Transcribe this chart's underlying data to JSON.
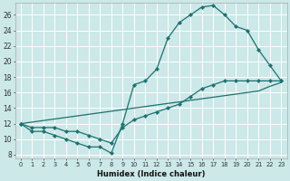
{
  "xlabel": "Humidex (Indice chaleur)",
  "bg_color": "#cce8e8",
  "grid_color": "#ffffff",
  "line_color": "#1e7070",
  "xlim": [
    -0.5,
    23.5
  ],
  "ylim": [
    7.5,
    27.5
  ],
  "xticks": [
    0,
    1,
    2,
    3,
    4,
    5,
    6,
    7,
    8,
    9,
    10,
    11,
    12,
    13,
    14,
    15,
    16,
    17,
    18,
    19,
    20,
    21,
    22,
    23
  ],
  "yticks": [
    8,
    10,
    12,
    14,
    16,
    18,
    20,
    22,
    24,
    26
  ],
  "line1_x": [
    0,
    1,
    2,
    3,
    4,
    5,
    6,
    7,
    8,
    9,
    10,
    11,
    12,
    13,
    14,
    15,
    16,
    17,
    18,
    19,
    20,
    21,
    22,
    23
  ],
  "line1_y": [
    12,
    11,
    11,
    10.5,
    10,
    9.5,
    9,
    9,
    8.2,
    12.0,
    17.0,
    17.5,
    19.0,
    23.0,
    25.0,
    26.0,
    27.0,
    27.2,
    26.0,
    24.5,
    24.0,
    21.5,
    19.5,
    17.5
  ],
  "line2_x": [
    0,
    1,
    2,
    3,
    4,
    5,
    6,
    7,
    8,
    9,
    10,
    11,
    12,
    13,
    14,
    15,
    16,
    17,
    18,
    19,
    20,
    21,
    22,
    23
  ],
  "line2_y": [
    12,
    11.5,
    11.5,
    11.5,
    11.0,
    11.0,
    10.5,
    10.0,
    9.5,
    11.5,
    12.5,
    13.0,
    13.5,
    14.0,
    14.5,
    15.5,
    16.5,
    17.0,
    17.5,
    17.5,
    17.5,
    17.5,
    17.5,
    17.5
  ],
  "line3_x": [
    0,
    1,
    2,
    3,
    4,
    5,
    6,
    7,
    8,
    9,
    10,
    11,
    12,
    13,
    14,
    15,
    16,
    17,
    18,
    19,
    20,
    21,
    22,
    23
  ],
  "line3_y": [
    12,
    12.2,
    12.4,
    12.6,
    12.8,
    13.0,
    13.2,
    13.4,
    13.6,
    13.8,
    14.0,
    14.2,
    14.4,
    14.6,
    14.8,
    15.0,
    15.2,
    15.4,
    15.6,
    15.8,
    16.0,
    16.2,
    16.8,
    17.3
  ]
}
